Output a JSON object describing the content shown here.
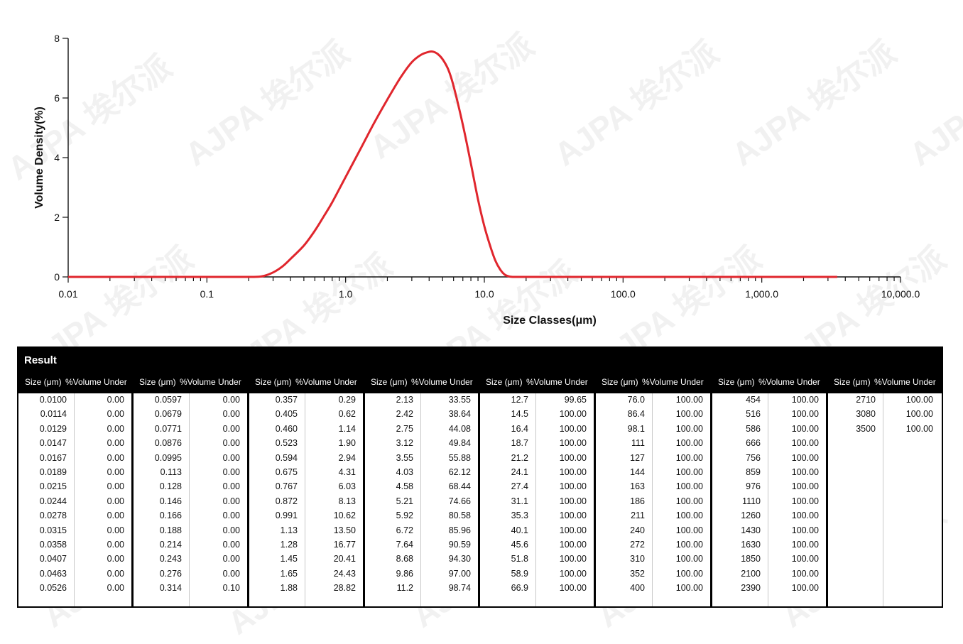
{
  "chart_data": {
    "type": "line",
    "title": "",
    "xlabel": "Size Classes(μm)",
    "ylabel": "Volume Density(%)",
    "x_scale": "log",
    "xlim": [
      0.01,
      10000
    ],
    "ylim": [
      0,
      8
    ],
    "x_ticks": [
      0.01,
      0.1,
      1,
      10,
      100,
      1000,
      10000
    ],
    "x_tick_labels": [
      "0.01",
      "0.1",
      "1.0",
      "10.0",
      "100.0",
      "1,000.0",
      "10,000.0"
    ],
    "y_ticks": [
      0,
      2,
      4,
      6,
      8
    ],
    "y_tick_labels": [
      "0",
      "2",
      "4",
      "6",
      "8"
    ],
    "grid": false,
    "series": [
      {
        "color": "#e0262d",
        "x": [
          0.01,
          0.05,
          0.1,
          0.2,
          0.25,
          0.3,
          0.35,
          0.4,
          0.5,
          0.6,
          0.7,
          0.8,
          1.0,
          1.3,
          1.6,
          2.0,
          2.5,
          3.0,
          3.5,
          4.0,
          4.3,
          4.6,
          5.0,
          5.5,
          6.0,
          7.0,
          8.0,
          9.0,
          10.0,
          11.0,
          12.0,
          13.0,
          14.0,
          15.0,
          16.0,
          20.0,
          100.0,
          1000.0,
          3500.0
        ],
        "y": [
          0.0,
          0.0,
          0.0,
          0.0,
          0.02,
          0.15,
          0.35,
          0.6,
          1.05,
          1.55,
          2.05,
          2.5,
          3.35,
          4.35,
          5.15,
          5.95,
          6.7,
          7.2,
          7.45,
          7.55,
          7.55,
          7.48,
          7.3,
          6.95,
          6.4,
          5.1,
          3.8,
          2.6,
          1.7,
          1.05,
          0.55,
          0.25,
          0.08,
          0.02,
          0.0,
          0.0,
          0.0,
          0.0,
          0.0
        ]
      }
    ]
  },
  "watermark": {
    "text": "AJPA 埃尔派"
  },
  "table": {
    "title": "Result",
    "size_header": "Size (μm)",
    "volume_header": "%Volume Under",
    "columns": [
      {
        "sizes": [
          "0.0100",
          "0.0114",
          "0.0129",
          "0.0147",
          "0.0167",
          "0.0189",
          "0.0215",
          "0.0244",
          "0.0278",
          "0.0315",
          "0.0358",
          "0.0407",
          "0.0463",
          "0.0526"
        ],
        "volumes": [
          "0.00",
          "0.00",
          "0.00",
          "0.00",
          "0.00",
          "0.00",
          "0.00",
          "0.00",
          "0.00",
          "0.00",
          "0.00",
          "0.00",
          "0.00",
          "0.00"
        ]
      },
      {
        "sizes": [
          "0.0597",
          "0.0679",
          "0.0771",
          "0.0876",
          "0.0995",
          "0.113",
          "0.128",
          "0.146",
          "0.166",
          "0.188",
          "0.214",
          "0.243",
          "0.276",
          "0.314"
        ],
        "volumes": [
          "0.00",
          "0.00",
          "0.00",
          "0.00",
          "0.00",
          "0.00",
          "0.00",
          "0.00",
          "0.00",
          "0.00",
          "0.00",
          "0.00",
          "0.00",
          "0.10"
        ]
      },
      {
        "sizes": [
          "0.357",
          "0.405",
          "0.460",
          "0.523",
          "0.594",
          "0.675",
          "0.767",
          "0.872",
          "0.991",
          "1.13",
          "1.28",
          "1.45",
          "1.65",
          "1.88"
        ],
        "volumes": [
          "0.29",
          "0.62",
          "1.14",
          "1.90",
          "2.94",
          "4.31",
          "6.03",
          "8.13",
          "10.62",
          "13.50",
          "16.77",
          "20.41",
          "24.43",
          "28.82"
        ]
      },
      {
        "sizes": [
          "2.13",
          "2.42",
          "2.75",
          "3.12",
          "3.55",
          "4.03",
          "4.58",
          "5.21",
          "5.92",
          "6.72",
          "7.64",
          "8.68",
          "9.86",
          "11.2"
        ],
        "volumes": [
          "33.55",
          "38.64",
          "44.08",
          "49.84",
          "55.88",
          "62.12",
          "68.44",
          "74.66",
          "80.58",
          "85.96",
          "90.59",
          "94.30",
          "97.00",
          "98.74"
        ]
      },
      {
        "sizes": [
          "12.7",
          "14.5",
          "16.4",
          "18.7",
          "21.2",
          "24.1",
          "27.4",
          "31.1",
          "35.3",
          "40.1",
          "45.6",
          "51.8",
          "58.9",
          "66.9"
        ],
        "volumes": [
          "99.65",
          "100.00",
          "100.00",
          "100.00",
          "100.00",
          "100.00",
          "100.00",
          "100.00",
          "100.00",
          "100.00",
          "100.00",
          "100.00",
          "100.00",
          "100.00"
        ]
      },
      {
        "sizes": [
          "76.0",
          "86.4",
          "98.1",
          "111",
          "127",
          "144",
          "163",
          "186",
          "211",
          "240",
          "272",
          "310",
          "352",
          "400"
        ],
        "volumes": [
          "100.00",
          "100.00",
          "100.00",
          "100.00",
          "100.00",
          "100.00",
          "100.00",
          "100.00",
          "100.00",
          "100.00",
          "100.00",
          "100.00",
          "100.00",
          "100.00"
        ]
      },
      {
        "sizes": [
          "454",
          "516",
          "586",
          "666",
          "756",
          "859",
          "976",
          "1110",
          "1260",
          "1430",
          "1630",
          "1850",
          "2100",
          "2390"
        ],
        "volumes": [
          "100.00",
          "100.00",
          "100.00",
          "100.00",
          "100.00",
          "100.00",
          "100.00",
          "100.00",
          "100.00",
          "100.00",
          "100.00",
          "100.00",
          "100.00",
          "100.00"
        ]
      },
      {
        "sizes": [
          "2710",
          "3080",
          "3500"
        ],
        "volumes": [
          "100.00",
          "100.00",
          "100.00"
        ]
      }
    ]
  }
}
